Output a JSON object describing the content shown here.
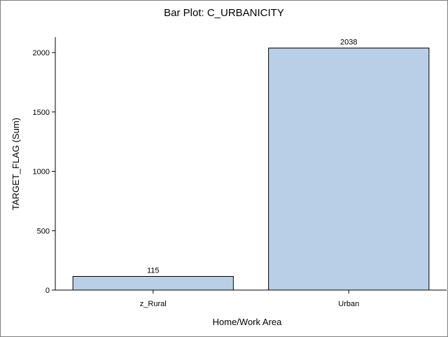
{
  "chart_data": {
    "type": "bar",
    "title": "Bar Plot: C_URBANICITY",
    "xlabel": "Home/Work Area",
    "ylabel": "TARGET_FLAG (Sum)",
    "categories": [
      "z_Rural",
      "Urban"
    ],
    "values": [
      115,
      2038
    ],
    "data_labels": [
      "115",
      "2038"
    ],
    "ylim": [
      0,
      2130
    ],
    "yticks": [
      0,
      500,
      1000,
      1500,
      2000
    ],
    "ytick_labels": [
      "0",
      "500",
      "1000",
      "1500",
      "2000"
    ],
    "grid": false,
    "legend": "none",
    "bar_color": "#b9cfe7",
    "bar_edge_color": "#000000"
  }
}
